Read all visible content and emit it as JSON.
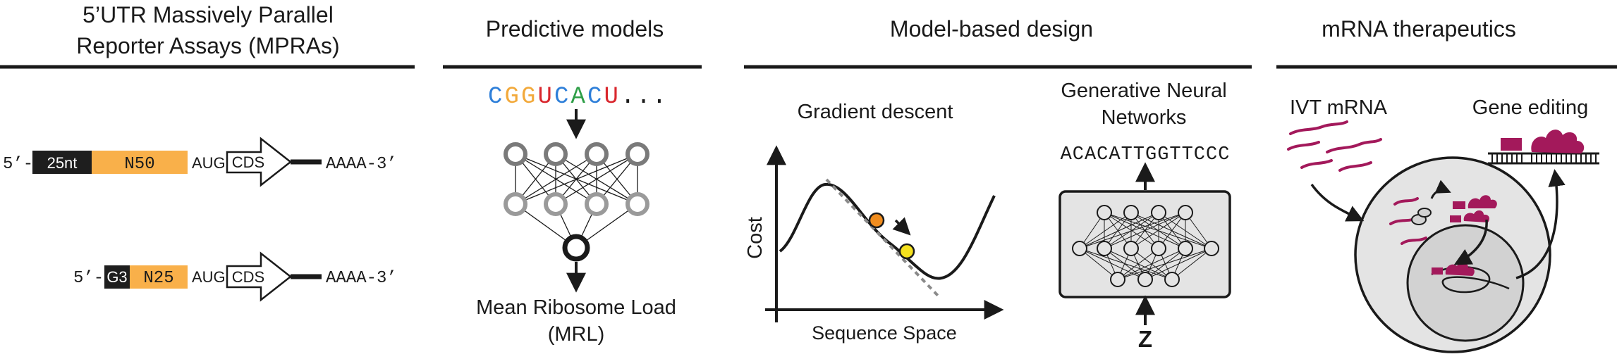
{
  "headers": {
    "mpra_line1": "5’UTR Massively Parallel",
    "mpra_line2": "Reporter Assays (MPRAs)",
    "predictive": "Predictive models",
    "design": "Model-based design",
    "therapeutics": "mRNA therapeutics"
  },
  "mpra": {
    "construct1": {
      "prefix": "5’-",
      "block1": "25nt",
      "block2": "N50",
      "start": "AUG",
      "cds": "CDS",
      "tail": "AAAA-3’"
    },
    "construct2": {
      "prefix": "5’-",
      "block1": "G3",
      "block2": "N25",
      "start": "AUG",
      "cds": "CDS",
      "tail": "AAAA-3’"
    }
  },
  "predictive": {
    "sequence": [
      {
        "ch": "C",
        "color": "#2e7fd9"
      },
      {
        "ch": "G",
        "color": "#f2a93b"
      },
      {
        "ch": "G",
        "color": "#f2a93b"
      },
      {
        "ch": "U",
        "color": "#d9272e"
      },
      {
        "ch": "C",
        "color": "#2e7fd9"
      },
      {
        "ch": "A",
        "color": "#2e9e47"
      },
      {
        "ch": "C",
        "color": "#2e7fd9"
      },
      {
        "ch": "U",
        "color": "#d9272e"
      }
    ],
    "ellipsis": "...",
    "output_line1": "Mean Ribosome Load",
    "output_line2": "(MRL)"
  },
  "design": {
    "gradient_title": "Gradient descent",
    "y_axis": "Cost",
    "x_axis": "Sequence Space",
    "gnn_line1": "Generative Neural",
    "gnn_line2": "Networks",
    "gnn_sequence": "ACACATTGGTTCCC",
    "latent": "Z"
  },
  "therapeutics": {
    "ivt": "IVT mRNA",
    "editing": "Gene editing"
  },
  "colors": {
    "orange_block": "#f9b04a",
    "black_block": "#1e1e1e",
    "magenta": "#a3195b",
    "point_orange": "#f08c1e",
    "point_yellow": "#f5e11e",
    "cell_fill": "#e4e4e4",
    "nucleus_fill": "#d2d2d2",
    "node_grey": "#7a7a7a",
    "node_light": "#a0a0a0"
  }
}
